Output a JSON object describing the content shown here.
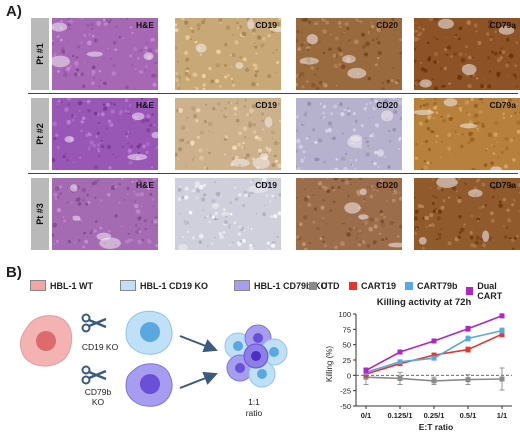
{
  "panel_a": {
    "letter": "A)",
    "rows": [
      {
        "label": "Pt #1"
      },
      {
        "label": "Pt #2"
      },
      {
        "label": "Pt #3"
      }
    ],
    "stains": [
      "H&E",
      "CD19",
      "CD20",
      "CD79a"
    ],
    "tile_colors": {
      "row0": [
        "#a668b4",
        "#c9a877",
        "#9a6a3f",
        "#8d5326"
      ],
      "row1": [
        "#9856b5",
        "#cdb18c",
        "#b6b1cc",
        "#b7803d"
      ],
      "row2": [
        "#a46ab2",
        "#cfd0dc",
        "#9b6d4a",
        "#915a2d"
      ]
    }
  },
  "panel_b": {
    "letter": "B)",
    "legend": [
      {
        "label": "HBL-1 WT",
        "color": "#f2a7a7"
      },
      {
        "label": "HBL-1 CD19 KO",
        "color": "#bfe0f6"
      },
      {
        "label": "HBL-1 CD79b KO",
        "color": "#a69cf0"
      }
    ],
    "schematic": {
      "ko1": "CD19 KO",
      "ko2_line1": "CD79b",
      "ko2_line2": "KO",
      "ratio_line1": "1:1",
      "ratio_line2": "ratio"
    }
  },
  "chart_data": {
    "type": "line",
    "title": "Killing activity at 72h",
    "xlabel": "E:T ratio",
    "ylabel": "Killing (%)",
    "categories": [
      "0/1",
      "0.125/1",
      "0.25/1",
      "0.5/1",
      "1/1"
    ],
    "ylim": [
      -50,
      100
    ],
    "yticks": [
      -50,
      -25,
      0,
      25,
      50,
      75,
      100
    ],
    "legend_position": "top",
    "series": [
      {
        "name": "UTD",
        "color": "#8a8a8a",
        "values": [
          -3,
          -5,
          -9,
          -7,
          -6
        ],
        "errors": [
          12,
          10,
          6,
          8,
          18
        ]
      },
      {
        "name": "CART19",
        "color": "#e8352b",
        "values": [
          2,
          19,
          33,
          42,
          67
        ],
        "errors": [
          5,
          3,
          3,
          4,
          4
        ]
      },
      {
        "name": "CART79b",
        "color": "#5aa8e0",
        "values": [
          5,
          22,
          28,
          60,
          73
        ],
        "errors": [
          4,
          3,
          3,
          4,
          4
        ]
      },
      {
        "name": "Dual CART",
        "color": "#b025c8",
        "values": [
          8,
          38,
          56,
          76,
          97
        ],
        "errors": [
          4,
          3,
          3,
          4,
          3
        ]
      }
    ]
  }
}
